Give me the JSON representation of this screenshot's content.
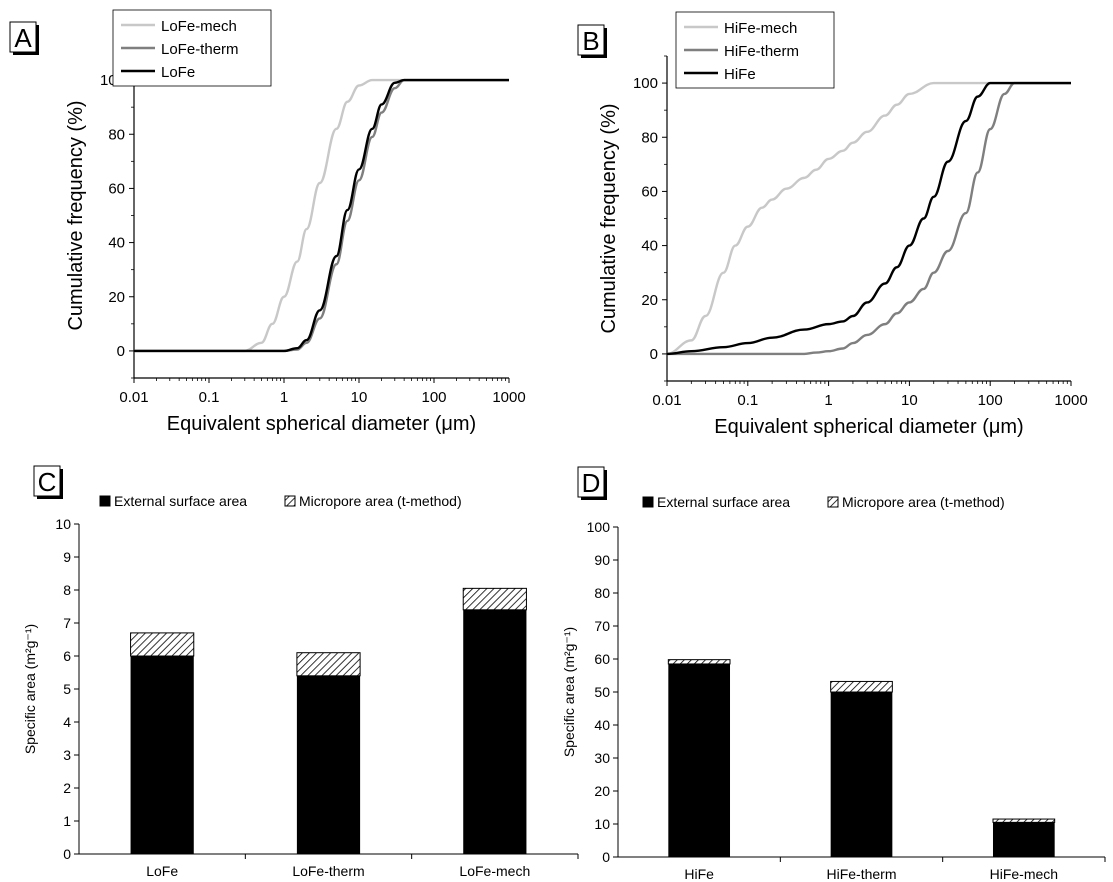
{
  "chart_data": [
    {
      "panel": "A",
      "type": "line",
      "xscale": "log",
      "xlim": [
        0.01,
        1000
      ],
      "ylim": [
        -10,
        110
      ],
      "xticks": [
        "0.01",
        "0.1",
        "1",
        "10",
        "100",
        "1000"
      ],
      "yticks": [
        "0",
        "20",
        "40",
        "60",
        "80",
        "100"
      ],
      "xlabel": "Equivalent spherical diameter (μm)",
      "ylabel": "Cumulative frequency (%)",
      "legend_position": "top-left",
      "series": [
        {
          "name": "LoFe-mech",
          "color": "#c8c8c8",
          "x": [
            0.01,
            0.3,
            0.5,
            0.7,
            1,
            1.5,
            2,
            3,
            5,
            7,
            10,
            15,
            20,
            30,
            1000
          ],
          "y": [
            0,
            0,
            3,
            10,
            20,
            33,
            45,
            62,
            82,
            92,
            98,
            100,
            100,
            100,
            100
          ]
        },
        {
          "name": "LoFe-therm",
          "color": "#7f7f7f",
          "x": [
            0.01,
            1,
            1.5,
            2,
            3,
            5,
            7,
            10,
            15,
            20,
            30,
            40,
            1000
          ],
          "y": [
            0,
            0,
            0.5,
            3,
            12,
            32,
            48,
            63,
            79,
            88,
            97,
            100,
            100
          ]
        },
        {
          "name": "LoFe",
          "color": "#000000",
          "x": [
            0.01,
            1,
            1.5,
            2,
            3,
            5,
            7,
            10,
            15,
            20,
            30,
            40,
            1000
          ],
          "y": [
            0,
            0,
            1,
            4,
            15,
            35,
            52,
            67,
            82,
            91,
            99,
            100,
            100
          ]
        }
      ]
    },
    {
      "panel": "B",
      "type": "line",
      "xscale": "log",
      "xlim": [
        0.01,
        1000
      ],
      "ylim": [
        -10,
        110
      ],
      "xticks": [
        "0.01",
        "0.1",
        "1",
        "10",
        "100",
        "1000"
      ],
      "yticks": [
        "0",
        "20",
        "40",
        "60",
        "80",
        "100"
      ],
      "xlabel": "Equivalent spherical diameter (μm)",
      "ylabel": "Cumulative frequency (%)",
      "legend_position": "top-left",
      "series": [
        {
          "name": "HiFe-mech",
          "color": "#c8c8c8",
          "x": [
            0.01,
            0.02,
            0.03,
            0.05,
            0.07,
            0.1,
            0.15,
            0.2,
            0.3,
            0.5,
            0.7,
            1,
            1.5,
            2,
            3,
            5,
            7,
            10,
            20,
            30,
            50,
            100,
            1000
          ],
          "y": [
            0,
            5,
            14,
            30,
            40,
            47,
            54,
            57,
            61,
            65,
            68,
            72,
            75,
            78,
            82,
            88,
            92,
            96,
            100,
            100,
            100,
            100,
            100
          ]
        },
        {
          "name": "HiFe-therm",
          "color": "#7f7f7f",
          "x": [
            0.01,
            0.5,
            0.7,
            1,
            1.5,
            2,
            3,
            5,
            7,
            10,
            15,
            20,
            30,
            50,
            70,
            100,
            150,
            200,
            1000
          ],
          "y": [
            0,
            0,
            0.5,
            1,
            2,
            4,
            7,
            11,
            15,
            19,
            24,
            30,
            38,
            52,
            67,
            83,
            96,
            100,
            100
          ]
        },
        {
          "name": "HiFe",
          "color": "#000000",
          "x": [
            0.01,
            0.02,
            0.05,
            0.1,
            0.2,
            0.5,
            1,
            1.5,
            2,
            3,
            5,
            7,
            10,
            15,
            20,
            30,
            50,
            70,
            100,
            1000
          ],
          "y": [
            0,
            1,
            2.5,
            4,
            6,
            9,
            11,
            12,
            14,
            19,
            26,
            32,
            40,
            50,
            58,
            71,
            86,
            95,
            100,
            100
          ]
        }
      ]
    },
    {
      "panel": "C",
      "type": "bar",
      "stacked": true,
      "categories": [
        "LoFe",
        "LoFe-therm",
        "LoFe-mech"
      ],
      "ylim": [
        0,
        10
      ],
      "yticks": [
        "0",
        "1",
        "2",
        "3",
        "4",
        "5",
        "6",
        "7",
        "8",
        "9",
        "10"
      ],
      "ylabel": "Specific area (m²g⁻¹)",
      "legend_position": "top",
      "series": [
        {
          "name": "External surface area",
          "fill": "solid-black",
          "values": [
            6.0,
            5.4,
            7.4
          ]
        },
        {
          "name": "Micropore area (t-method)",
          "fill": "hatched",
          "values": [
            0.7,
            0.7,
            0.65
          ]
        }
      ]
    },
    {
      "panel": "D",
      "type": "bar",
      "stacked": true,
      "categories": [
        "HiFe",
        "HiFe-therm",
        "HiFe-mech"
      ],
      "ylim": [
        0,
        100
      ],
      "yticks": [
        "0",
        "10",
        "20",
        "30",
        "40",
        "50",
        "60",
        "70",
        "80",
        "90",
        "100"
      ],
      "ylabel": "Specific area (m²g⁻¹)",
      "legend_position": "top",
      "series": [
        {
          "name": "External surface area",
          "fill": "solid-black",
          "values": [
            58.5,
            50.0,
            10.5
          ]
        },
        {
          "name": "Micropore area (t-method)",
          "fill": "hatched",
          "values": [
            1.3,
            3.2,
            1.0
          ]
        }
      ]
    }
  ]
}
